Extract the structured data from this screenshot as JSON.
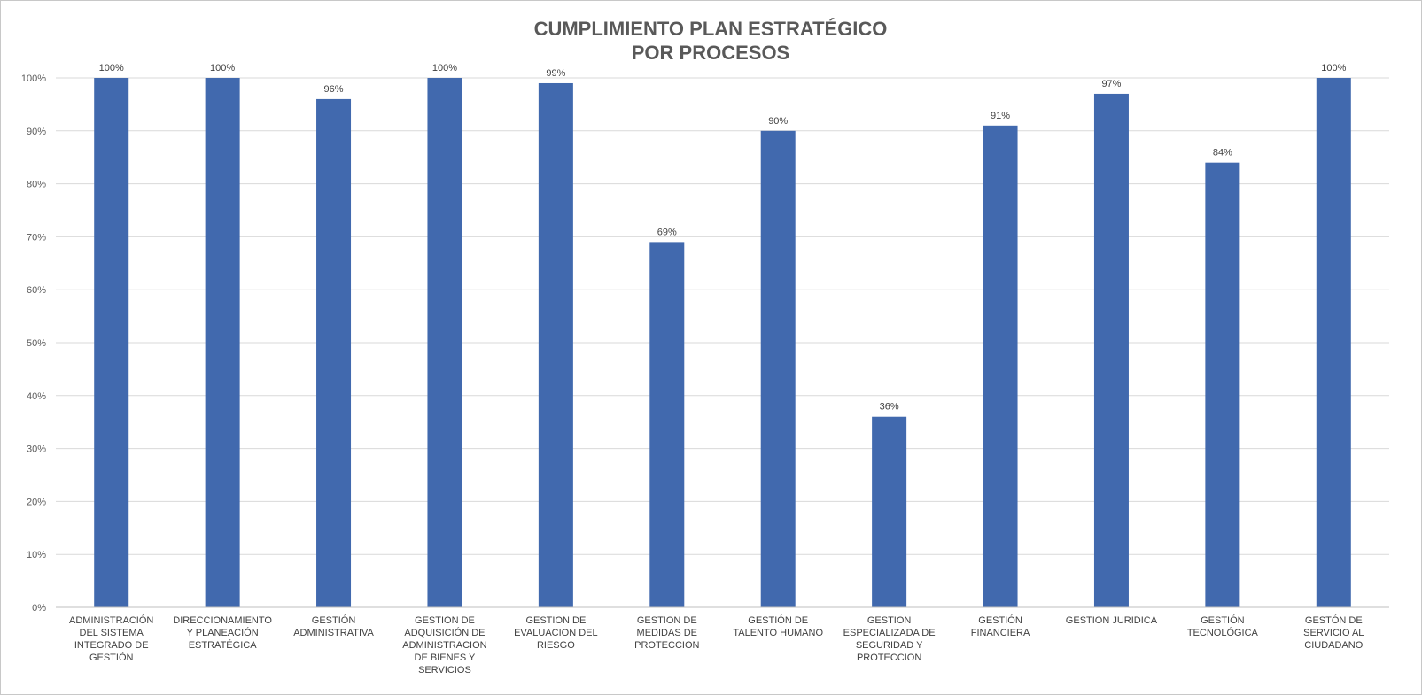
{
  "chart_data": {
    "type": "bar",
    "title_lines": [
      "CUMPLIMIENTO PLAN ESTRATÉGICO",
      "POR PROCESOS"
    ],
    "xlabel": "",
    "ylabel": "",
    "ylim": [
      0,
      100
    ],
    "y_ticks": [
      "0%",
      "10%",
      "20%",
      "30%",
      "40%",
      "50%",
      "60%",
      "70%",
      "80%",
      "90%",
      "100%"
    ],
    "categories": [
      [
        "ADMINISTRACIÓN",
        "DEL SISTEMA",
        "INTEGRADO DE",
        "GESTIÓN"
      ],
      [
        "DIRECCIONAMIENTO",
        "Y PLANEACIÓN",
        "ESTRATÉGICA"
      ],
      [
        "GESTIÓN",
        "ADMINISTRATIVA"
      ],
      [
        "GESTION DE",
        "ADQUISICIÓN DE",
        "ADMINISTRACION",
        "DE BIENES Y",
        "SERVICIOS"
      ],
      [
        "GESTION DE",
        "EVALUACION DEL",
        "RIESGO"
      ],
      [
        "GESTION DE",
        "MEDIDAS DE",
        "PROTECCION"
      ],
      [
        "GESTIÓN DE",
        "TALENTO HUMANO"
      ],
      [
        "GESTION",
        "ESPECIALIZADA DE",
        "SEGURIDAD Y",
        "PROTECCION"
      ],
      [
        "GESTIÓN",
        "FINANCIERA"
      ],
      [
        "GESTION JURIDICA"
      ],
      [
        "GESTIÓN",
        "TECNOLÓGICA"
      ],
      [
        "GESTÓN DE",
        "SERVICIO AL",
        "CIUDADANO"
      ]
    ],
    "values": [
      100,
      100,
      96,
      100,
      99,
      69,
      90,
      36,
      91,
      97,
      84,
      100
    ],
    "data_labels": [
      "100%",
      "100%",
      "96%",
      "100%",
      "99%",
      "69%",
      "90%",
      "36%",
      "91%",
      "97%",
      "84%",
      "100%"
    ],
    "bar_color": "#4169ae",
    "grid": true,
    "legend": "none"
  }
}
